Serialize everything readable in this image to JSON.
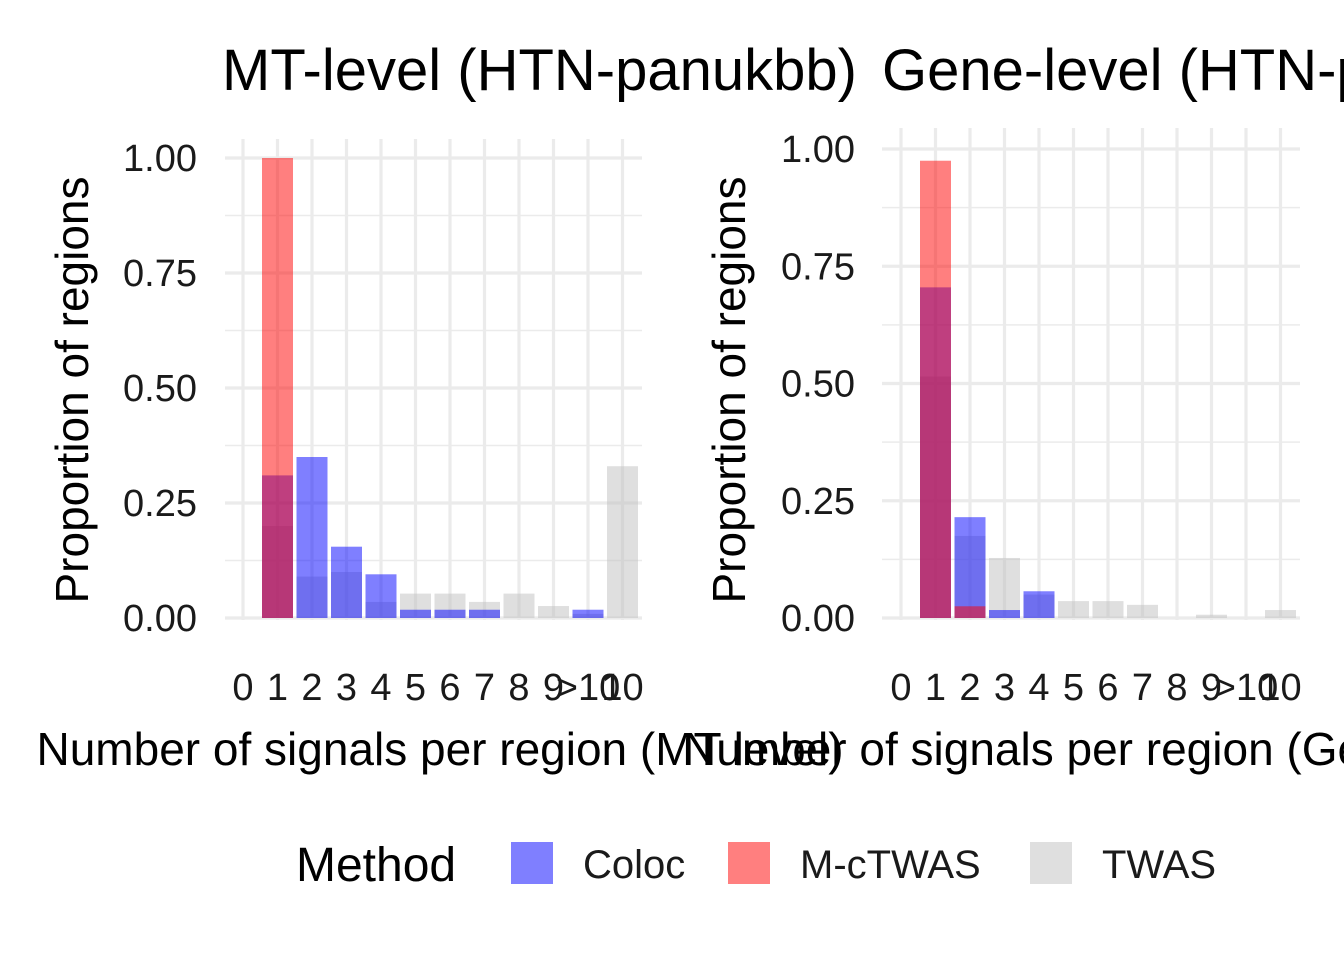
{
  "figure": {
    "legend": {
      "title": "Method",
      "placement": "bottom",
      "entries": [
        {
          "label": "Coloc",
          "color": "#0000ff"
        },
        {
          "label": "M-cTWAS",
          "color": "#ff0000"
        },
        {
          "label": "TWAS",
          "color": "#bfbfbf"
        }
      ]
    }
  },
  "chart_data": [
    {
      "type": "bar",
      "bar_position": "identity (overlaid, semi-transparent)",
      "title": "MT-level (HTN-panukbb)",
      "xlabel": "Number of signals per region (MT level)",
      "ylabel": "Proportion of regions",
      "categories": [
        "0",
        "1",
        "2",
        "3",
        "4",
        "5",
        "6",
        "7",
        "8",
        "9",
        ">10",
        "10"
      ],
      "ylim": [
        0,
        1.0
      ],
      "yticks": [
        "0.00",
        "0.25",
        "0.50",
        "0.75",
        "1.00"
      ],
      "grid": true,
      "series": [
        {
          "name": "Coloc",
          "color": "#0000ff",
          "values": [
            null,
            0.31,
            0.35,
            0.155,
            0.095,
            0.018,
            0.018,
            0.018,
            null,
            null,
            0.018,
            null
          ]
        },
        {
          "name": "M-cTWAS",
          "color": "#ff0000",
          "values": [
            null,
            1.0,
            null,
            null,
            null,
            null,
            null,
            null,
            null,
            null,
            null,
            null
          ]
        },
        {
          "name": "TWAS",
          "color": "#bfbfbf",
          "values": [
            null,
            0.2,
            0.09,
            0.1,
            0.035,
            0.053,
            0.053,
            0.035,
            0.053,
            0.026,
            0.009,
            0.33
          ]
        }
      ]
    },
    {
      "type": "bar",
      "bar_position": "identity (overlaid, semi-transparent)",
      "title": "Gene-level (HTN-panukbb)",
      "xlabel": "Number of signals per region (Gene level)",
      "ylabel": "Proportion of regions",
      "categories": [
        "0",
        "1",
        "2",
        "3",
        "4",
        "5",
        "6",
        "7",
        "8",
        "9",
        ">10",
        "10"
      ],
      "ylim": [
        0,
        1.0
      ],
      "yticks": [
        "0.00",
        "0.25",
        "0.50",
        "0.75",
        "1.00"
      ],
      "grid": true,
      "series": [
        {
          "name": "Coloc",
          "color": "#0000ff",
          "values": [
            null,
            0.705,
            0.215,
            0.017,
            0.057,
            null,
            null,
            null,
            null,
            null,
            null,
            null
          ]
        },
        {
          "name": "M-cTWAS",
          "color": "#ff0000",
          "values": [
            null,
            0.975,
            0.025,
            null,
            null,
            null,
            null,
            null,
            null,
            null,
            null,
            null
          ]
        },
        {
          "name": "TWAS",
          "color": "#bfbfbf",
          "values": [
            null,
            0.515,
            0.175,
            0.128,
            0.05,
            0.036,
            0.036,
            0.028,
            null,
            0.007,
            null,
            0.017
          ]
        }
      ]
    }
  ]
}
